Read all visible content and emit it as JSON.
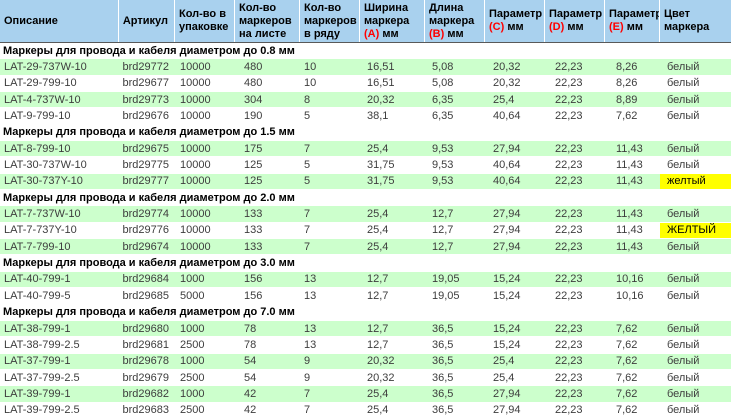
{
  "colors": {
    "header_bg": "#A9D1EE",
    "row_green": "#CCFFCC",
    "highlight_yellow": "#FFFF00",
    "param_letter_red": "#FF0000"
  },
  "table": {
    "header": {
      "col_description": "Описание",
      "col_article": "Артикул",
      "col_pack_qty": "Кол-во в упаковке",
      "col_per_sheet": "Кол-во маркеров на листе",
      "col_per_row": "Кол-во маркеров в ряду",
      "col_width": {
        "text": "Ширина маркера",
        "red": "(A)",
        "unit": "мм"
      },
      "col_length": {
        "text": "Длина маркера",
        "red": "(B)",
        "unit": "мм"
      },
      "col_param_c": {
        "text": "Параметр",
        "red": "(C)",
        "unit": "мм"
      },
      "col_param_d": {
        "text": "Параметр",
        "red": "(D)",
        "unit": "мм"
      },
      "col_param_e": {
        "text": "Параметр",
        "red": "(E)",
        "unit": "мм"
      },
      "col_color": "Цвет маркера"
    },
    "sections": [
      {
        "title": "Маркеры для провода и кабеля диаметром до 0.8 мм",
        "rows": [
          {
            "cells": [
              "LAT-29-737W-10",
              "brd29772",
              "10000",
              "480",
              "10",
              "16,51",
              "5,08",
              "20,32",
              "22,23",
              "8,26",
              "белый"
            ]
          },
          {
            "cells": [
              "LAT-29-799-10",
              "brd29677",
              "10000",
              "480",
              "10",
              "16,51",
              "5,08",
              "20,32",
              "22,23",
              "8,26",
              "белый"
            ]
          },
          {
            "cells": [
              "LAT-4-737W-10",
              "brd29773",
              "10000",
              "304",
              "8",
              "20,32",
              "6,35",
              "25,4",
              "22,23",
              "8,89",
              "белый"
            ]
          },
          {
            "cells": [
              "LAT-9-799-10",
              "brd29676",
              "10000",
              "190",
              "5",
              "38,1",
              "6,35",
              "40,64",
              "22,23",
              "7,62",
              "белый"
            ]
          }
        ]
      },
      {
        "title": "Маркеры для провода и кабеля диаметром до 1.5 мм",
        "rows": [
          {
            "cells": [
              "LAT-8-799-10",
              "brd29675",
              "10000",
              "175",
              "7",
              "25,4",
              "9,53",
              "27,94",
              "22,23",
              "11,43",
              "белый"
            ]
          },
          {
            "cells": [
              "LAT-30-737W-10",
              "brd29775",
              "10000",
              "125",
              "5",
              "31,75",
              "9,53",
              "40,64",
              "22,23",
              "11,43",
              "белый"
            ]
          },
          {
            "cells": [
              "LAT-30-737Y-10",
              "brd29777",
              "10000",
              "125",
              "5",
              "31,75",
              "9,53",
              "40,64",
              "22,23",
              "11,43",
              "желтый"
            ],
            "color_highlight": true
          }
        ]
      },
      {
        "title": "Маркеры для провода и кабеля диаметром до 2.0 мм",
        "rows": [
          {
            "cells": [
              "LAT-7-737W-10",
              "brd29774",
              "10000",
              "133",
              "7",
              "25,4",
              "12,7",
              "27,94",
              "22,23",
              "11,43",
              "белый"
            ]
          },
          {
            "cells": [
              "LAT-7-737Y-10",
              "brd29776",
              "10000",
              "133",
              "7",
              "25,4",
              "12,7",
              "27,94",
              "22,23",
              "11,43",
              "ЖЕЛТЫЙ"
            ],
            "color_highlight": true
          },
          {
            "cells": [
              "LAT-7-799-10",
              "brd29674",
              "10000",
              "133",
              "7",
              "25,4",
              "12,7",
              "27,94",
              "22,23",
              "11,43",
              "белый"
            ]
          }
        ]
      },
      {
        "title": "Маркеры для провода и кабеля диаметром до 3.0 мм",
        "rows": [
          {
            "cells": [
              "LAT-40-799-1",
              "brd29684",
              "1000",
              "156",
              "13",
              "12,7",
              "19,05",
              "15,24",
              "22,23",
              "10,16",
              "белый"
            ]
          },
          {
            "cells": [
              "LAT-40-799-5",
              "brd29685",
              "5000",
              "156",
              "13",
              "12,7",
              "19,05",
              "15,24",
              "22,23",
              "10,16",
              "белый"
            ]
          }
        ]
      },
      {
        "title": "Маркеры для провода и кабеля диаметром до 7.0 мм",
        "rows": [
          {
            "cells": [
              "LAT-38-799-1",
              "brd29680",
              "1000",
              "78",
              "13",
              "12,7",
              "36,5",
              "15,24",
              "22,23",
              "7,62",
              "белый"
            ]
          },
          {
            "cells": [
              "LAT-38-799-2.5",
              "brd29681",
              "2500",
              "78",
              "13",
              "12,7",
              "36,5",
              "15,24",
              "22,23",
              "7,62",
              "белый"
            ]
          },
          {
            "cells": [
              "LAT-37-799-1",
              "brd29678",
              "1000",
              "54",
              "9",
              "20,32",
              "36,5",
              "25,4",
              "22,23",
              "7,62",
              "белый"
            ]
          },
          {
            "cells": [
              "LAT-37-799-2.5",
              "brd29679",
              "2500",
              "54",
              "9",
              "20,32",
              "36,5",
              "25,4",
              "22,23",
              "7,62",
              "белый"
            ]
          },
          {
            "cells": [
              "LAT-39-799-1",
              "brd29682",
              "1000",
              "42",
              "7",
              "25,4",
              "36,5",
              "27,94",
              "22,23",
              "7,62",
              "белый"
            ]
          },
          {
            "cells": [
              "LAT-39-799-2.5",
              "brd29683",
              "2500",
              "42",
              "7",
              "25,4",
              "36,5",
              "27,94",
              "22,23",
              "7,62",
              "белый"
            ]
          }
        ]
      }
    ]
  }
}
